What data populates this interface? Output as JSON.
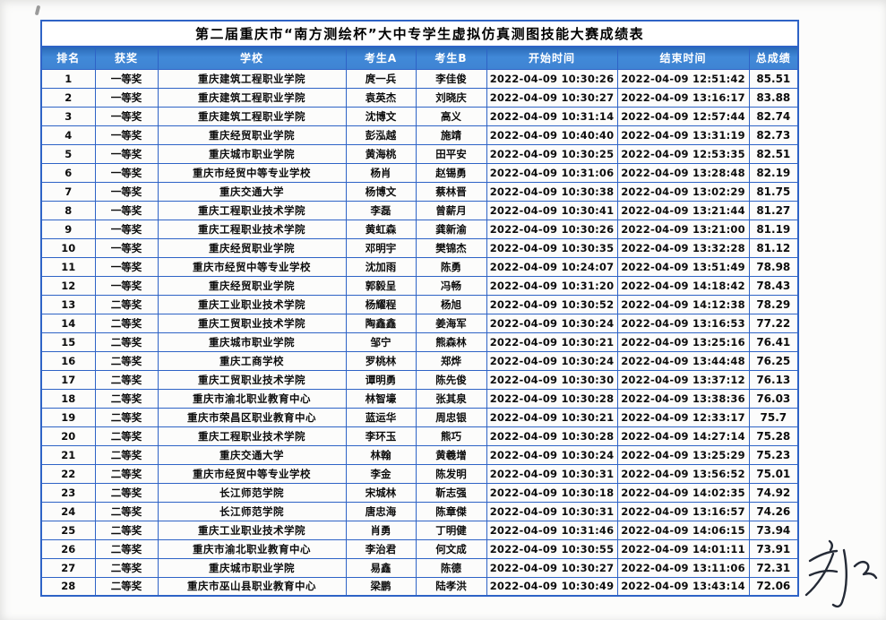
{
  "page": {
    "title": "第二届重庆市“南方测绘杯”大中专学生虚拟仿真测图技能大赛成绩表",
    "signature_text": "刘"
  },
  "colors": {
    "table_border": "#2e63c6",
    "header_background": "#4189d8",
    "header_text": "#ffffff"
  },
  "table": {
    "columns": [
      "排名",
      "获奖",
      "学校",
      "考生A",
      "考生B",
      "开始时间",
      "结束时间",
      "总成绩"
    ],
    "rows": [
      [
        "1",
        "一等奖",
        "重庆建筑工程职业学院",
        "庹一兵",
        "李佳俊",
        "2022-04-09 10:30:26",
        "2022-04-09 12:51:42",
        "85.51"
      ],
      [
        "2",
        "一等奖",
        "重庆建筑工程职业学院",
        "袁英杰",
        "刘晓庆",
        "2022-04-09 10:30:27",
        "2022-04-09 13:16:17",
        "83.88"
      ],
      [
        "3",
        "一等奖",
        "重庆建筑工程职业学院",
        "沈博文",
        "高义",
        "2022-04-09 10:31:14",
        "2022-04-09 12:57:44",
        "82.74"
      ],
      [
        "4",
        "一等奖",
        "重庆经贸职业学院",
        "彭泓越",
        "施靖",
        "2022-04-09 10:40:40",
        "2022-04-09 13:31:19",
        "82.73"
      ],
      [
        "5",
        "一等奖",
        "重庆城市职业学院",
        "黄海桃",
        "田平安",
        "2022-04-09 10:30:25",
        "2022-04-09 12:53:35",
        "82.51"
      ],
      [
        "6",
        "一等奖",
        "重庆市经贸中等专业学校",
        "杨肖",
        "赵锡勇",
        "2022-04-09 10:31:06",
        "2022-04-09 13:28:48",
        "82.19"
      ],
      [
        "7",
        "一等奖",
        "重庆交通大学",
        "杨博文",
        "蔡林晋",
        "2022-04-09 10:30:38",
        "2022-04-09 13:02:29",
        "81.75"
      ],
      [
        "8",
        "一等奖",
        "重庆工程职业技术学院",
        "李磊",
        "曾薪月",
        "2022-04-09 10:30:41",
        "2022-04-09 13:21:44",
        "81.27"
      ],
      [
        "9",
        "一等奖",
        "重庆工程职业技术学院",
        "黄虹森",
        "龚新渝",
        "2022-04-09 10:30:26",
        "2022-04-09 13:21:00",
        "81.19"
      ],
      [
        "10",
        "一等奖",
        "重庆经贸职业学院",
        "邓明宇",
        "樊锦杰",
        "2022-04-09 10:30:35",
        "2022-04-09 13:32:28",
        "81.12"
      ],
      [
        "11",
        "一等奖",
        "重庆市经贸中等专业学校",
        "沈加雨",
        "陈勇",
        "2022-04-09 10:24:07",
        "2022-04-09 13:51:49",
        "78.98"
      ],
      [
        "12",
        "一等奖",
        "重庆经贸职业学院",
        "郭毅呈",
        "冯畅",
        "2022-04-09 10:31:20",
        "2022-04-09 14:18:42",
        "78.43"
      ],
      [
        "13",
        "二等奖",
        "重庆工业职业技术学院",
        "杨耀程",
        "杨旭",
        "2022-04-09 10:30:52",
        "2022-04-09 14:12:38",
        "78.29"
      ],
      [
        "14",
        "二等奖",
        "重庆工贸职业技术学院",
        "陶鑫鑫",
        "姜海军",
        "2022-04-09 10:30:24",
        "2022-04-09 13:16:53",
        "77.22"
      ],
      [
        "15",
        "二等奖",
        "重庆城市职业学院",
        "邹宁",
        "熊森林",
        "2022-04-09 10:30:21",
        "2022-04-09 13:25:16",
        "76.41"
      ],
      [
        "16",
        "二等奖",
        "重庆工商学校",
        "罗桃林",
        "郑烨",
        "2022-04-09 10:30:24",
        "2022-04-09 13:44:48",
        "76.25"
      ],
      [
        "17",
        "二等奖",
        "重庆工贸职业技术学院",
        "谭明勇",
        "陈先俊",
        "2022-04-09 10:30:30",
        "2022-04-09 13:37:12",
        "76.13"
      ],
      [
        "18",
        "二等奖",
        "重庆市渝北职业教育中心",
        "林智壕",
        "张其泉",
        "2022-04-09 10:30:28",
        "2022-04-09 13:38:36",
        "76.03"
      ],
      [
        "19",
        "二等奖",
        "重庆市荣昌区职业教育中心",
        "蓝运华",
        "周忠银",
        "2022-04-09 10:30:21",
        "2022-04-09 12:33:17",
        "75.7"
      ],
      [
        "20",
        "二等奖",
        "重庆工程职业技术学院",
        "李环玉",
        "熊巧",
        "2022-04-09 10:30:28",
        "2022-04-09 14:27:14",
        "75.28"
      ],
      [
        "21",
        "二等奖",
        "重庆交通大学",
        "林翰",
        "黄羲增",
        "2022-04-09 10:30:24",
        "2022-04-09 13:25:29",
        "75.23"
      ],
      [
        "22",
        "二等奖",
        "重庆市经贸中等专业学校",
        "李金",
        "陈发明",
        "2022-04-09 10:30:31",
        "2022-04-09 13:56:52",
        "75.01"
      ],
      [
        "23",
        "二等奖",
        "长江师范学院",
        "宋城林",
        "靳志强",
        "2022-04-09 10:30:18",
        "2022-04-09 14:02:35",
        "74.92"
      ],
      [
        "24",
        "二等奖",
        "长江师范学院",
        "唐忠海",
        "陈章傑",
        "2022-04-09 10:30:31",
        "2022-04-09 13:16:57",
        "74.26"
      ],
      [
        "25",
        "二等奖",
        "重庆工业职业技术学院",
        "肖勇",
        "丁明健",
        "2022-04-09 10:31:46",
        "2022-04-09 14:06:15",
        "73.94"
      ],
      [
        "26",
        "二等奖",
        "重庆市渝北职业教育中心",
        "李治君",
        "何文成",
        "2022-04-09 10:30:55",
        "2022-04-09 14:01:11",
        "73.91"
      ],
      [
        "27",
        "二等奖",
        "重庆城市职业学院",
        "易鑫",
        "陈德",
        "2022-04-09 10:30:27",
        "2022-04-09 13:11:06",
        "72.31"
      ],
      [
        "28",
        "二等奖",
        "重庆市巫山县职业教育中心",
        "梁鹏",
        "陆孝洪",
        "2022-04-09 10:30:49",
        "2022-04-09 13:43:14",
        "72.06"
      ]
    ]
  }
}
